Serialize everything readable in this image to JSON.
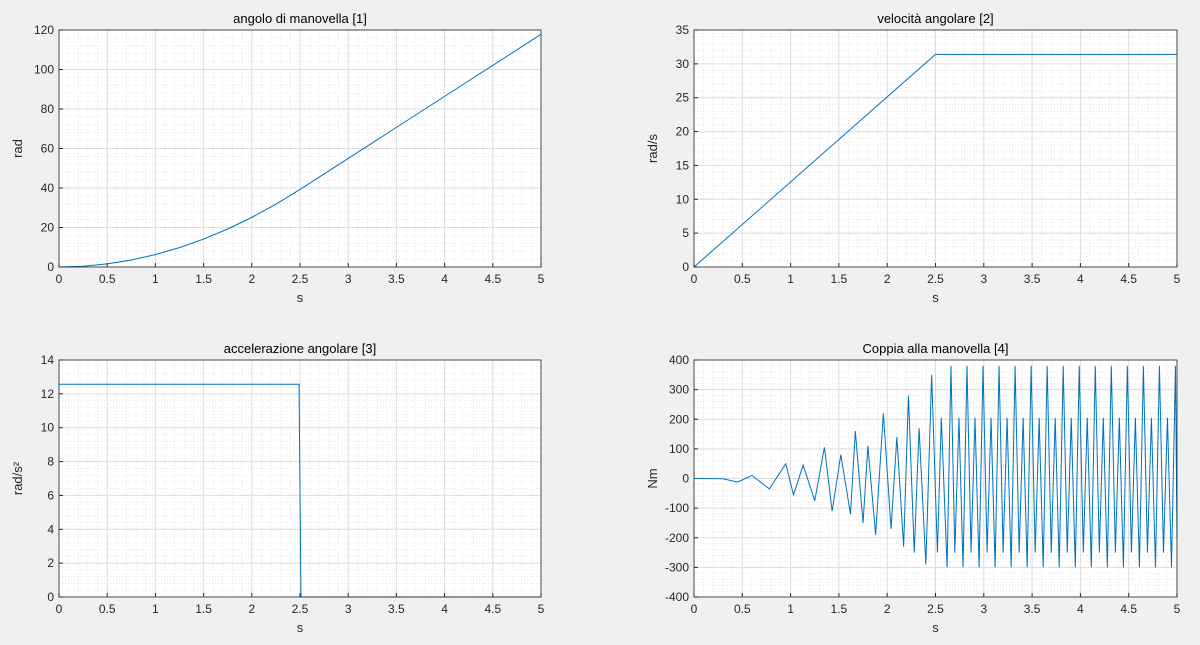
{
  "chart_data": [
    {
      "type": "line",
      "title": "angolo di manovella [1]",
      "xlabel": "s",
      "ylabel": "rad",
      "x": [
        0,
        0.25,
        0.5,
        0.75,
        1,
        1.25,
        1.5,
        1.75,
        2,
        2.25,
        2.5,
        2.75,
        3,
        3.25,
        3.5,
        3.75,
        4,
        4.25,
        4.5,
        4.75,
        5
      ],
      "series": [
        {
          "color": "#0072bd",
          "values": [
            0,
            0.39,
            1.57,
            3.53,
            6.28,
            9.82,
            14.14,
            19.24,
            25.13,
            31.81,
            39.27,
            47.12,
            54.98,
            62.83,
            70.69,
            78.54,
            86.39,
            94.25,
            102.1,
            109.96,
            117.81
          ]
        }
      ],
      "xlim": [
        0,
        5
      ],
      "xticks": [
        0,
        0.5,
        1,
        1.5,
        2,
        2.5,
        3,
        3.5,
        4,
        4.5,
        5
      ],
      "ylim": [
        0,
        120
      ],
      "yticks": [
        0,
        20,
        40,
        60,
        80,
        100,
        120
      ],
      "grid": true,
      "minor_grid": true
    },
    {
      "type": "line",
      "title": "velocità angolare [2]",
      "xlabel": "s",
      "ylabel": "rad/s",
      "x": [
        0,
        2.5,
        5
      ],
      "series": [
        {
          "color": "#0072bd",
          "values": [
            0,
            31.4,
            31.4
          ]
        }
      ],
      "xlim": [
        0,
        5
      ],
      "xticks": [
        0,
        0.5,
        1,
        1.5,
        2,
        2.5,
        3,
        3.5,
        4,
        4.5,
        5
      ],
      "ylim": [
        0,
        35
      ],
      "yticks": [
        0,
        5,
        10,
        15,
        20,
        25,
        30,
        35
      ],
      "grid": true,
      "minor_grid": true
    },
    {
      "type": "line",
      "title": "accelerazione angolare [3]",
      "xlabel": "s",
      "ylabel": "rad/s²",
      "x": [
        0,
        2.49,
        2.51,
        5
      ],
      "series": [
        {
          "color": "#0072bd",
          "values": [
            12.57,
            12.57,
            0,
            0
          ]
        }
      ],
      "xlim": [
        0,
        5
      ],
      "xticks": [
        0,
        0.5,
        1,
        1.5,
        2,
        2.5,
        3,
        3.5,
        4,
        4.5,
        5
      ],
      "ylim": [
        0,
        14
      ],
      "yticks": [
        0,
        2,
        4,
        6,
        8,
        10,
        12,
        14
      ],
      "grid": true,
      "minor_grid": true
    },
    {
      "type": "line",
      "title": "Coppia alla manovella [4]",
      "xlabel": "s",
      "ylabel": "Nm",
      "x": [
        0,
        0.3,
        0.45,
        0.6,
        0.78,
        0.95,
        1.03,
        1.13,
        1.25,
        1.35,
        1.43,
        1.52,
        1.62,
        1.67,
        1.75,
        1.8,
        1.88,
        1.96,
        2.04,
        2.1,
        2.17,
        2.22,
        2.28,
        2.33,
        2.4,
        2.46,
        2.52,
        2.56,
        2.62,
        2.66,
        2.7,
        2.743,
        2.785,
        2.826,
        2.868,
        2.909,
        2.951,
        2.992,
        3.034,
        3.075,
        3.117,
        3.158,
        3.2,
        3.241,
        3.283,
        3.324,
        3.366,
        3.407,
        3.449,
        3.49,
        3.532,
        3.573,
        3.615,
        3.656,
        3.698,
        3.739,
        3.781,
        3.822,
        3.864,
        3.905,
        3.947,
        3.988,
        4.03,
        4.071,
        4.113,
        4.154,
        4.196,
        4.237,
        4.279,
        4.32,
        4.362,
        4.403,
        4.445,
        4.486,
        4.528,
        4.569,
        4.611,
        4.652,
        4.694,
        4.735,
        4.777,
        4.818,
        4.86,
        4.901,
        4.943,
        4.984,
        5
      ],
      "series": [
        {
          "color": "#0072bd",
          "values": [
            0,
            -1,
            -12,
            10,
            -35,
            50,
            -55,
            45,
            -75,
            105,
            -110,
            80,
            -120,
            160,
            -150,
            110,
            -190,
            220,
            -170,
            140,
            -230,
            280,
            -250,
            170,
            -290,
            350,
            -250,
            205,
            -300,
            380,
            -250,
            205,
            -300,
            380,
            -250,
            205,
            -300,
            380,
            -250,
            205,
            -300,
            380,
            -250,
            205,
            -300,
            380,
            -250,
            205,
            -300,
            380,
            -250,
            205,
            -300,
            380,
            -250,
            205,
            -300,
            380,
            -250,
            205,
            -300,
            380,
            -250,
            205,
            -300,
            380,
            -250,
            205,
            -300,
            380,
            -250,
            205,
            -300,
            380,
            -250,
            205,
            -300,
            380,
            -250,
            205,
            -300,
            380,
            -250,
            205,
            -300,
            380,
            -200
          ]
        }
      ],
      "xlim": [
        0,
        5
      ],
      "xticks": [
        0,
        0.5,
        1,
        1.5,
        2,
        2.5,
        3,
        3.5,
        4,
        4.5,
        5
      ],
      "ylim": [
        -400,
        400
      ],
      "yticks": [
        -400,
        -300,
        -200,
        -100,
        0,
        100,
        200,
        300,
        400
      ],
      "grid": true,
      "minor_grid": true
    }
  ]
}
